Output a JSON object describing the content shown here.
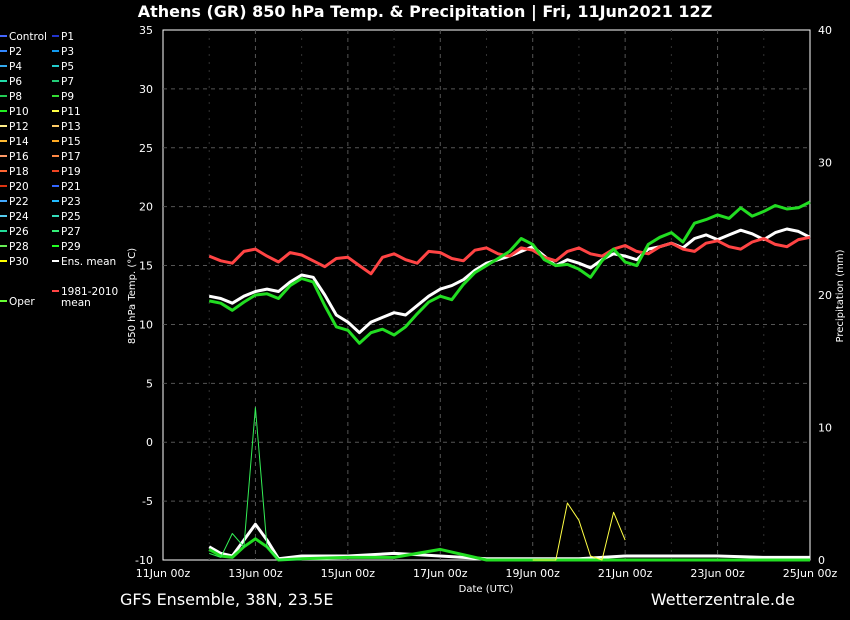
{
  "chart_data": {
    "type": "line",
    "title": "Athens  (GR)  850 hPa Temp. & Precipitation | Fri, 11Jun2021 12Z",
    "footer_left": "GFS Ensemble, 38N, 23.5E",
    "footer_right": "Wetterzentrale.de",
    "xlabel": "Date (UTC)",
    "ylabel_left": "850 hPa Temp. (°C)",
    "ylabel_right": "Precipitation (mm)",
    "x_ticks": [
      "11Jun 00z",
      "13Jun 00z",
      "15Jun 00z",
      "17Jun 00z",
      "19Jun 00z",
      "21Jun 00z",
      "23Jun 00z",
      "25Jun 00z"
    ],
    "x_range_days": [
      0,
      14
    ],
    "y_left_range": [
      -10,
      35
    ],
    "y_left_ticks": [
      "35",
      "30",
      "25",
      "20",
      "15",
      "10",
      "5",
      "0",
      "-5",
      "-10"
    ],
    "y_right_range": [
      0,
      40
    ],
    "y_right_ticks": [
      "40",
      "30",
      "20",
      "10",
      "0"
    ],
    "grid": true,
    "legend_placement": "left",
    "legend": [
      {
        "label": "Control",
        "color": "#4466ff"
      },
      {
        "label": "P1",
        "color": "#2233cc"
      },
      {
        "label": "P2",
        "color": "#3388ff"
      },
      {
        "label": "P3",
        "color": "#1199ee"
      },
      {
        "label": "P4",
        "color": "#33aaee"
      },
      {
        "label": "P5",
        "color": "#22cccc"
      },
      {
        "label": "P6",
        "color": "#22ddaa"
      },
      {
        "label": "P7",
        "color": "#22cc77"
      },
      {
        "label": "P8",
        "color": "#22cc55"
      },
      {
        "label": "P9",
        "color": "#33dd33"
      },
      {
        "label": "P10",
        "color": "#22ee22"
      },
      {
        "label": "P11",
        "color": "#ffff44"
      },
      {
        "label": "P12",
        "color": "#ffee88"
      },
      {
        "label": "P13",
        "color": "#ffcc66"
      },
      {
        "label": "P14",
        "color": "#ffbb33"
      },
      {
        "label": "P15",
        "color": "#ffaa22"
      },
      {
        "label": "P16",
        "color": "#ff9966"
      },
      {
        "label": "P17",
        "color": "#ff8844"
      },
      {
        "label": "P18",
        "color": "#ff6633"
      },
      {
        "label": "P19",
        "color": "#ee4422"
      },
      {
        "label": "P20",
        "color": "#dd3311"
      },
      {
        "label": "P21",
        "color": "#3366ff"
      },
      {
        "label": "P22",
        "color": "#44aaff"
      },
      {
        "label": "P23",
        "color": "#22bbff"
      },
      {
        "label": "P24",
        "color": "#55ccee"
      },
      {
        "label": "P25",
        "color": "#33ddbb"
      },
      {
        "label": "P26",
        "color": "#22dd99"
      },
      {
        "label": "P27",
        "color": "#33ee77"
      },
      {
        "label": "P28",
        "color": "#66ee55"
      },
      {
        "label": "P29",
        "color": "#22ff22"
      },
      {
        "label": "P30",
        "color": "#ffff00"
      },
      {
        "label": "Ens. mean",
        "color": "#ffffff"
      },
      {
        "label": "1981-2010",
        "color": "#ff4444"
      },
      {
        "label": "mean",
        "color": "#ff4444"
      },
      {
        "label": "Oper",
        "color": "#66ff33"
      }
    ],
    "temp_x": [
      1.0,
      1.25,
      1.5,
      1.75,
      2.0,
      2.25,
      2.5,
      2.75,
      3.0,
      3.25,
      3.5,
      3.75,
      4.0,
      4.25,
      4.5,
      4.75,
      5.0,
      5.25,
      5.5,
      5.75,
      6.0,
      6.25,
      6.5,
      6.75,
      7.0,
      7.25,
      7.5,
      7.75,
      8.0,
      8.25,
      8.5,
      8.75,
      9.0,
      9.25,
      9.5,
      9.75,
      10.0,
      10.25,
      10.5,
      10.75,
      11.0,
      11.25,
      11.5,
      11.75,
      12.0,
      12.25,
      12.5,
      12.75,
      13.0,
      13.25,
      13.5,
      13.75,
      14.0
    ],
    "series": [
      {
        "name": "Ens. mean",
        "color": "#ffffff",
        "width": 3,
        "values": [
          12.4,
          12.2,
          11.8,
          12.4,
          12.8,
          13.0,
          12.8,
          13.6,
          14.2,
          14.0,
          12.5,
          10.8,
          10.2,
          9.3,
          10.2,
          10.6,
          11.0,
          10.8,
          11.6,
          12.4,
          13.0,
          13.3,
          13.8,
          14.6,
          15.2,
          15.5,
          15.8,
          16.2,
          16.6,
          15.8,
          15.0,
          15.5,
          15.2,
          14.8,
          15.5,
          16.0,
          15.8,
          15.5,
          16.4,
          16.6,
          16.9,
          16.5,
          17.3,
          17.6,
          17.2,
          17.6,
          18.0,
          17.7,
          17.2,
          17.8,
          18.1,
          17.9,
          17.4
        ]
      },
      {
        "name": "1981-2010 mean",
        "color": "#ff4444",
        "width": 3,
        "values": [
          15.8,
          15.4,
          15.2,
          16.2,
          16.4,
          15.8,
          15.3,
          16.1,
          15.9,
          15.4,
          14.9,
          15.6,
          15.7,
          15.0,
          14.3,
          15.7,
          16.0,
          15.5,
          15.2,
          16.2,
          16.1,
          15.6,
          15.4,
          16.3,
          16.5,
          16.0,
          15.8,
          16.5,
          16.3,
          15.7,
          15.4,
          16.2,
          16.5,
          16.0,
          15.8,
          16.4,
          16.7,
          16.2,
          16.0,
          16.6,
          16.9,
          16.4,
          16.2,
          16.9,
          17.1,
          16.6,
          16.4,
          17.0,
          17.3,
          16.8,
          16.6,
          17.2,
          17.4
        ]
      },
      {
        "name": "Oper",
        "color": "#22dd22",
        "width": 3,
        "values": [
          12.0,
          11.8,
          11.2,
          11.9,
          12.5,
          12.6,
          12.2,
          13.3,
          13.9,
          13.6,
          11.6,
          9.8,
          9.5,
          8.4,
          9.3,
          9.6,
          9.1,
          9.8,
          10.9,
          11.9,
          12.4,
          12.1,
          13.4,
          14.4,
          15.0,
          15.6,
          16.2,
          17.3,
          16.8,
          15.5,
          15.0,
          15.1,
          14.7,
          14.0,
          15.4,
          16.4,
          15.3,
          15.0,
          16.8,
          17.4,
          17.8,
          17.0,
          18.6,
          18.9,
          19.3,
          19.0,
          19.9,
          19.2,
          19.6,
          20.1,
          19.8,
          19.9,
          20.4
        ]
      }
    ],
    "precip_series": [
      {
        "name": "Ens. mean",
        "color": "#ffffff",
        "width": 3,
        "x": [
          1.0,
          1.25,
          1.5,
          1.75,
          2.0,
          2.25,
          2.5,
          3.0,
          4.0,
          5.0,
          6.0,
          7.0,
          8.0,
          9.0,
          10.0,
          11.0,
          12.0,
          13.0,
          14.0
        ],
        "values": [
          1.0,
          0.5,
          0.3,
          1.5,
          2.7,
          1.5,
          0.1,
          0.3,
          0.3,
          0.5,
          0.3,
          0.1,
          0.1,
          0.1,
          0.3,
          0.3,
          0.3,
          0.2,
          0.2
        ]
      },
      {
        "name": "Oper",
        "color": "#22dd22",
        "width": 3,
        "x": [
          1.0,
          1.25,
          1.5,
          1.75,
          2.0,
          2.25,
          2.5,
          3.0,
          4.0,
          5.0,
          6.0,
          7.0,
          8.0,
          9.0,
          10.0,
          11.0,
          12.0,
          13.0,
          14.0
        ],
        "values": [
          0.8,
          0.3,
          0.2,
          1.0,
          1.6,
          1.0,
          0.0,
          0.1,
          0.2,
          0.2,
          0.8,
          0.0,
          0.0,
          0.0,
          0.0,
          0.0,
          0.0,
          0.0,
          0.0
        ]
      },
      {
        "name": "P16",
        "color": "#33ee55",
        "width": 1,
        "x": [
          1.0,
          1.25,
          1.5,
          1.75,
          2.0,
          2.25,
          2.5,
          3.0
        ],
        "values": [
          0.5,
          0.2,
          2.0,
          1.0,
          11.5,
          1.0,
          0.0,
          0.0
        ]
      },
      {
        "name": "P11",
        "color": "#ffff44",
        "width": 1,
        "x": [
          8.0,
          8.25,
          8.5,
          8.75,
          9.0,
          9.25,
          9.5,
          9.75,
          10.0
        ],
        "values": [
          0.0,
          0.0,
          0.0,
          4.3,
          3.0,
          0.3,
          0.0,
          3.6,
          1.5
        ]
      }
    ]
  }
}
